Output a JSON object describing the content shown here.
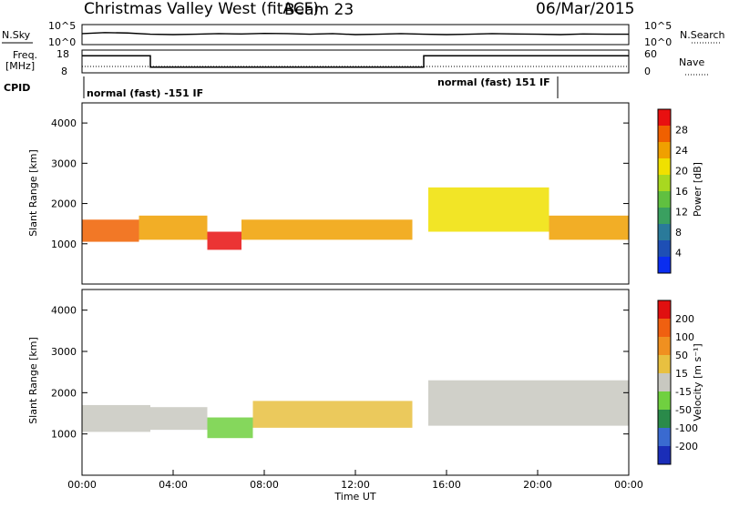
{
  "header": {
    "title": "Christmas Valley West (fitACF)",
    "beam": "Beam 23",
    "date": "06/Mar/2015"
  },
  "chart_data": [
    {
      "type": "line",
      "panel": "noise",
      "left_label": "N.Sky",
      "right_label": "N.Search",
      "yticks_left": [
        "10^5",
        "10^0"
      ],
      "yticks_right": [
        "10^5",
        "10^0"
      ],
      "x": [
        0,
        1,
        2,
        3,
        4,
        5,
        6,
        7,
        8,
        9,
        10,
        11,
        12,
        13,
        14,
        15,
        16,
        17,
        18,
        19,
        20,
        21,
        22,
        23,
        24
      ],
      "series": [
        {
          "values": [
            0.55,
            0.6,
            0.58,
            0.52,
            0.5,
            0.52,
            0.55,
            0.53,
            0.56,
            0.55,
            0.52,
            0.55,
            0.5,
            0.52,
            0.55,
            0.52,
            0.5,
            0.52,
            0.55,
            0.53,
            0.52,
            0.5,
            0.53,
            0.52,
            0.52
          ]
        }
      ]
    },
    {
      "type": "line",
      "panel": "frequency",
      "left_label": "Freq.",
      "left_unit": "[MHz]",
      "right_label": "Nave",
      "yticks_left": [
        "18",
        "8"
      ],
      "yticks_right": [
        "60",
        "0"
      ],
      "cpid_label": "CPID",
      "cpid_segments": [
        {
          "start": 0,
          "end": 15,
          "label": "normal (fast) -151 IF"
        },
        {
          "start": 15,
          "end": 24,
          "label": "normal (fast) 151 IF"
        }
      ],
      "freq_steps": [
        {
          "x_from": 0,
          "x_to": 3,
          "value": 15.5
        },
        {
          "x_from": 3,
          "x_to": 15,
          "value": 10.5
        },
        {
          "x_from": 15,
          "x_to": 24,
          "value": 15.5
        }
      ]
    },
    {
      "type": "heatmap",
      "panel": "power",
      "ylabel": "Slant Range [km]",
      "ylim": [
        0,
        4500
      ],
      "yticks": [
        "4000",
        "3000",
        "2000",
        "1000"
      ],
      "colorbar_label": "Power [dB]",
      "colorbar_ticks": [
        "28",
        "24",
        "20",
        "16",
        "12",
        "8",
        "4"
      ],
      "colors": [
        "#0a2df0",
        "#1e4fb5",
        "#2a7a9a",
        "#3aa060",
        "#60c040",
        "#a8d820",
        "#f0e000",
        "#f0a000",
        "#f06000",
        "#e81010"
      ],
      "bands": [
        {
          "x": [
            0,
            2.5
          ],
          "range": [
            1050,
            1600
          ],
          "level": 8
        },
        {
          "x": [
            2.5,
            5.5
          ],
          "range": [
            1100,
            1700
          ],
          "level": 7
        },
        {
          "x": [
            5.5,
            7.0
          ],
          "range": [
            850,
            1300
          ],
          "level": 9
        },
        {
          "x": [
            7.0,
            14.5
          ],
          "range": [
            1100,
            1600
          ],
          "level": 7
        },
        {
          "x": [
            15.2,
            20.5
          ],
          "range": [
            1300,
            2400
          ],
          "level": 6
        },
        {
          "x": [
            20.5,
            24
          ],
          "range": [
            1100,
            1700
          ],
          "level": 7
        }
      ]
    },
    {
      "type": "heatmap",
      "panel": "velocity",
      "xlabel": "Time UT",
      "ylabel": "Slant Range [km]",
      "ylim": [
        0,
        4500
      ],
      "yticks": [
        "4000",
        "3000",
        "2000",
        "1000"
      ],
      "xticks": [
        "00:00",
        "04:00",
        "08:00",
        "12:00",
        "16:00",
        "20:00",
        "00:00"
      ],
      "colorbar_label": "Velocity [m s⁻¹]",
      "colorbar_ticks": [
        "200",
        "100",
        "50",
        "15",
        "-15",
        "-50",
        "-100",
        "-200"
      ],
      "colors": [
        "#1a2db8",
        "#3a6ad0",
        "#2a8a4a",
        "#70d040",
        "#c8c8c0",
        "#e8c040",
        "#f09020",
        "#f06010",
        "#e01010"
      ],
      "bands": [
        {
          "x": [
            0,
            3.0
          ],
          "range": [
            1050,
            1700
          ],
          "level": 4
        },
        {
          "x": [
            3.0,
            5.5
          ],
          "range": [
            1100,
            1650
          ],
          "level": 4
        },
        {
          "x": [
            5.5,
            7.5
          ],
          "range": [
            900,
            1400
          ],
          "level": 3
        },
        {
          "x": [
            7.5,
            14.5
          ],
          "range": [
            1150,
            1800
          ],
          "level": 5
        },
        {
          "x": [
            15.2,
            24
          ],
          "range": [
            1200,
            2300
          ],
          "level": 4
        }
      ]
    }
  ]
}
